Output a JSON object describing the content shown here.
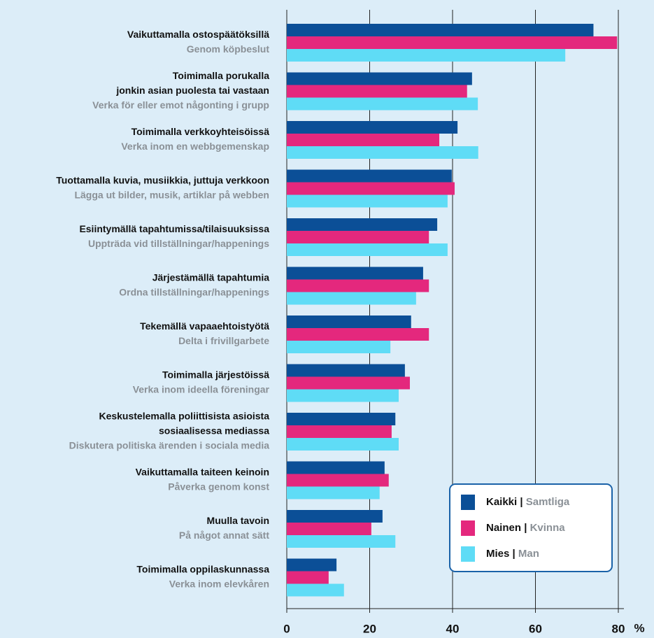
{
  "chart_data": {
    "type": "bar",
    "orientation": "horizontal",
    "categories": [
      [
        "Vaikuttamalla ostospäätöksillä",
        "Genom köpbeslut"
      ],
      [
        "Toimimalla porukalla",
        "jonkin asian puolesta tai vastaan",
        "Verka för eller emot någonting i grupp"
      ],
      [
        "Toimimalla verkkoyhteisöissä",
        "Verka inom en webbgemenskap"
      ],
      [
        "Tuottamalla kuvia, musiikkia, juttuja verkkoon",
        "Lägga ut bilder, musik, artiklar på webben"
      ],
      [
        "Esiintymällä tapahtumissa/tilaisuuksissa",
        "Uppträda vid tillställningar/happenings"
      ],
      [
        "Järjestämällä tapahtumia",
        "Ordna tillställningar/happenings"
      ],
      [
        "Tekemällä vapaaehtoistyötä",
        "Delta i frivillgarbete"
      ],
      [
        "Toimimalla järjestöissä",
        "Verka inom ideella föreningar"
      ],
      [
        "Keskustelemalla poliittisista asioista",
        "sosiaalisessa mediassa",
        "Diskutera politiska ärenden i sociala media"
      ],
      [
        "Vaikuttamalla taiteen keinoin",
        "Påverka genom konst"
      ],
      [
        "Muulla tavoin",
        "På något annat sätt"
      ],
      [
        "Toimimalla oppilaskunnassa",
        "Verka inom elevkåren"
      ]
    ],
    "series": [
      {
        "name": "Kaikki",
        "name_sv": "Samtliga",
        "color": "#0b4f97",
        "values": [
          74,
          44.7,
          41.2,
          39.8,
          36.3,
          32.9,
          30,
          28.5,
          26.2,
          23.6,
          23.1,
          12
        ]
      },
      {
        "name": "Nainen",
        "name_sv": "Kvinna",
        "color": "#e4287d",
        "values": [
          79.7,
          43.5,
          36.8,
          40.5,
          34.3,
          34.3,
          34.3,
          29.7,
          25.3,
          24.6,
          20.4,
          10.1
        ]
      },
      {
        "name": "Mies",
        "name_sv": "Man",
        "color": "#5fdcf6",
        "values": [
          67.2,
          46.1,
          46.2,
          38.8,
          38.8,
          31.2,
          25,
          27,
          27,
          22.4,
          26.2,
          13.8
        ]
      }
    ],
    "legend_separator": "|",
    "x_unit": "%",
    "xlim": [
      0,
      80
    ],
    "xticks": [
      0,
      20,
      40,
      60,
      80
    ],
    "grid": true,
    "legend": "lower right"
  }
}
